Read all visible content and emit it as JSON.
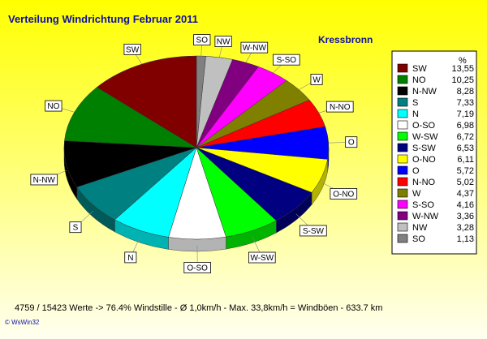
{
  "header": {
    "title": "Verteilung Windrichtung    Februar 2011",
    "location": "Kressbronn"
  },
  "footer": {
    "stats": "4759 / 15423 Werte  -> 76.4% Windstille   -  Ø 1,0km/h  -  Max. 33,8km/h = Windböen   -   633.7 km",
    "credit": "© WsWin32"
  },
  "chart_data": {
    "type": "pie",
    "legend_header": "%",
    "legend_position": "right",
    "slices": [
      {
        "label": "SW",
        "value": 13.55,
        "value_text": "13,55",
        "color": "#800000"
      },
      {
        "label": "NO",
        "value": 10.25,
        "value_text": "10,25",
        "color": "#008000"
      },
      {
        "label": "N-NW",
        "value": 8.28,
        "value_text": "8,28",
        "color": "#000000"
      },
      {
        "label": "S",
        "value": 7.33,
        "value_text": "7,33",
        "color": "#008080"
      },
      {
        "label": "N",
        "value": 7.19,
        "value_text": "7,19",
        "color": "#00ffff"
      },
      {
        "label": "O-SO",
        "value": 6.98,
        "value_text": "6,98",
        "color": "#ffffff"
      },
      {
        "label": "W-SW",
        "value": 6.72,
        "value_text": "6,72",
        "color": "#00ff00"
      },
      {
        "label": "S-SW",
        "value": 6.53,
        "value_text": "6,53",
        "color": "#000080"
      },
      {
        "label": "O-NO",
        "value": 6.11,
        "value_text": "6,11",
        "color": "#ffff00"
      },
      {
        "label": "O",
        "value": 5.72,
        "value_text": "5,72",
        "color": "#0000ff"
      },
      {
        "label": "N-NO",
        "value": 5.02,
        "value_text": "5,02",
        "color": "#ff0000"
      },
      {
        "label": "W",
        "value": 4.37,
        "value_text": "4,37",
        "color": "#808000"
      },
      {
        "label": "S-SO",
        "value": 4.16,
        "value_text": "4,16",
        "color": "#ff00ff"
      },
      {
        "label": "W-NW",
        "value": 3.36,
        "value_text": "3,36",
        "color": "#800080"
      },
      {
        "label": "NW",
        "value": 3.28,
        "value_text": "3,28",
        "color": "#c0c0c0"
      },
      {
        "label": "SO",
        "value": 1.13,
        "value_text": "1,13",
        "color": "#808080"
      }
    ],
    "pie_order": [
      "SO",
      "NW",
      "W-NW",
      "S-SO",
      "W",
      "N-NO",
      "O",
      "O-NO",
      "S-SW",
      "W-SW",
      "O-SO",
      "N",
      "S",
      "N-NW",
      "NO",
      "SW"
    ]
  }
}
